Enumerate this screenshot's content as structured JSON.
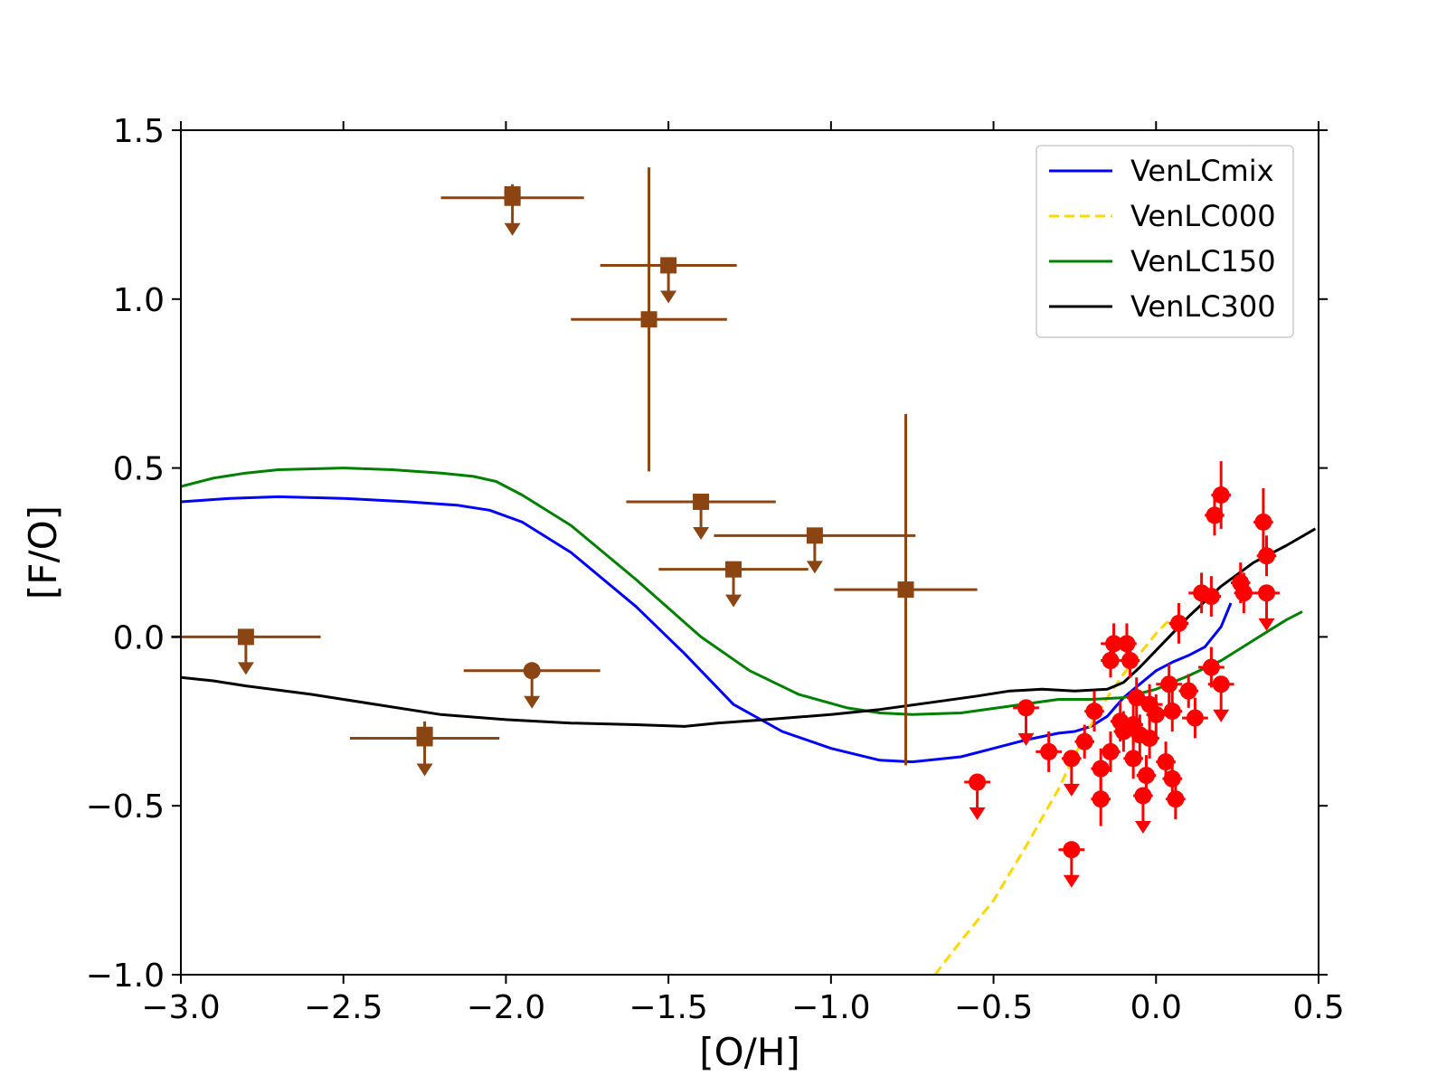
{
  "chart_data": {
    "type": "scatter",
    "xlabel": "[O/H]",
    "ylabel": "[F/O]",
    "xlim": [
      -3.0,
      0.5
    ],
    "ylim": [
      -1.0,
      1.5
    ],
    "xticks": [
      -3.0,
      -2.5,
      -2.0,
      -1.5,
      -1.0,
      -0.5,
      0.0,
      0.5
    ],
    "xtick_labels": [
      "−3.0",
      "−2.5",
      "−2.0",
      "−1.5",
      "−1.0",
      "−0.5",
      "0.0",
      "0.5"
    ],
    "yticks": [
      -1.0,
      -0.5,
      0.0,
      0.5,
      1.0,
      1.5
    ],
    "ytick_labels": [
      "−1.0",
      "−0.5",
      "0.0",
      "0.5",
      "1.0",
      "1.5"
    ],
    "legend_position": "top-right",
    "series": [
      {
        "name": "VenLCmix",
        "kind": "line",
        "color": "#0000ff",
        "dash": "solid",
        "x": [
          -3.0,
          -2.85,
          -2.7,
          -2.5,
          -2.3,
          -2.15,
          -2.05,
          -1.95,
          -1.8,
          -1.6,
          -1.45,
          -1.3,
          -1.15,
          -1.0,
          -0.85,
          -0.75,
          -0.6,
          -0.5,
          -0.4,
          -0.3,
          -0.25,
          -0.2,
          -0.15,
          -0.1,
          -0.05,
          0.0,
          0.05,
          0.1,
          0.15,
          0.2,
          0.23
        ],
        "y": [
          0.4,
          0.41,
          0.415,
          0.41,
          0.4,
          0.39,
          0.375,
          0.34,
          0.25,
          0.09,
          -0.05,
          -0.2,
          -0.28,
          -0.33,
          -0.365,
          -0.37,
          -0.355,
          -0.33,
          -0.305,
          -0.285,
          -0.28,
          -0.265,
          -0.235,
          -0.18,
          -0.14,
          -0.1,
          -0.075,
          -0.055,
          -0.03,
          0.03,
          0.1
        ]
      },
      {
        "name": "VenLC000",
        "kind": "line",
        "color": "#ffd700",
        "dash": "dashed",
        "x": [
          -0.68,
          -0.6,
          -0.5,
          -0.4,
          -0.3,
          -0.25,
          -0.2,
          -0.15,
          -0.1,
          -0.05,
          0.0,
          0.03,
          0.06
        ],
        "y": [
          -1.0,
          -0.9,
          -0.78,
          -0.62,
          -0.45,
          -0.35,
          -0.26,
          -0.18,
          -0.11,
          -0.05,
          0.01,
          0.04,
          0.06
        ]
      },
      {
        "name": "VenLC150",
        "kind": "line",
        "color": "#008000",
        "dash": "solid",
        "x": [
          -3.0,
          -2.9,
          -2.8,
          -2.7,
          -2.5,
          -2.35,
          -2.2,
          -2.1,
          -2.03,
          -1.95,
          -1.8,
          -1.6,
          -1.4,
          -1.25,
          -1.1,
          -0.95,
          -0.85,
          -0.75,
          -0.6,
          -0.45,
          -0.3,
          -0.2,
          -0.1,
          0.0,
          0.1,
          0.2,
          0.3,
          0.4,
          0.45
        ],
        "y": [
          0.445,
          0.47,
          0.485,
          0.495,
          0.5,
          0.495,
          0.485,
          0.475,
          0.46,
          0.42,
          0.33,
          0.17,
          0.0,
          -0.1,
          -0.17,
          -0.21,
          -0.225,
          -0.23,
          -0.225,
          -0.205,
          -0.185,
          -0.185,
          -0.18,
          -0.155,
          -0.115,
          -0.07,
          -0.01,
          0.05,
          0.075
        ]
      },
      {
        "name": "VenLC300",
        "kind": "line",
        "color": "#000000",
        "dash": "solid",
        "x": [
          -3.0,
          -2.9,
          -2.8,
          -2.6,
          -2.4,
          -2.2,
          -2.0,
          -1.8,
          -1.6,
          -1.45,
          -1.35,
          -1.2,
          -1.0,
          -0.85,
          -0.7,
          -0.55,
          -0.45,
          -0.35,
          -0.25,
          -0.15,
          -0.1,
          -0.05,
          0.0,
          0.05,
          0.1,
          0.2,
          0.3,
          0.4,
          0.49
        ],
        "y": [
          -0.12,
          -0.13,
          -0.145,
          -0.17,
          -0.2,
          -0.23,
          -0.245,
          -0.255,
          -0.26,
          -0.265,
          -0.255,
          -0.245,
          -0.23,
          -0.215,
          -0.195,
          -0.175,
          -0.16,
          -0.155,
          -0.16,
          -0.155,
          -0.135,
          -0.09,
          -0.04,
          0.01,
          0.06,
          0.15,
          0.22,
          0.27,
          0.32
        ]
      }
    ],
    "brown_points": {
      "color": "#8b4513",
      "points": [
        {
          "x": -1.98,
          "y": 1.3,
          "marker": "square",
          "xerr": 0.22,
          "yerr": 0,
          "upper_limit": true
        },
        {
          "x": -1.98,
          "y": 1.31,
          "marker": "square",
          "xerr": 0,
          "yerr": 0.03,
          "upper_limit": false
        },
        {
          "x": -1.5,
          "y": 1.1,
          "marker": "square",
          "xerr": 0.21,
          "yerr": 0,
          "upper_limit": true
        },
        {
          "x": -1.56,
          "y": 0.94,
          "marker": "square",
          "xerr": 0.24,
          "yerr": 0.45,
          "upper_limit": false
        },
        {
          "x": -1.4,
          "y": 0.4,
          "marker": "square",
          "xerr": 0.23,
          "yerr": 0,
          "upper_limit": true
        },
        {
          "x": -1.05,
          "y": 0.3,
          "marker": "square",
          "xerr": 0.31,
          "yerr": 0,
          "upper_limit": true
        },
        {
          "x": -1.3,
          "y": 0.2,
          "marker": "square",
          "xerr": 0.23,
          "yerr": 0,
          "upper_limit": true
        },
        {
          "x": -0.77,
          "y": 0.14,
          "marker": "square",
          "xerr": 0.22,
          "yerr": 0.52,
          "upper_limit": false
        },
        {
          "x": -2.8,
          "y": 0.0,
          "marker": "square",
          "xerr": 0.23,
          "yerr": 0,
          "upper_limit": true
        },
        {
          "x": -1.92,
          "y": -0.1,
          "marker": "circle",
          "xerr": 0.21,
          "yerr": 0,
          "upper_limit": true
        },
        {
          "x": -2.25,
          "y": -0.3,
          "marker": "square",
          "xerr": 0.23,
          "yerr": 0,
          "upper_limit": true
        },
        {
          "x": -2.25,
          "y": -0.29,
          "marker": "square",
          "xerr": 0,
          "yerr": 0.04,
          "upper_limit": false
        }
      ]
    },
    "red_points": {
      "color": "#ff0000",
      "points": [
        {
          "x": 0.2,
          "y": 0.42,
          "xerr": 0.03,
          "yerr": 0.1,
          "upper_limit": false
        },
        {
          "x": 0.18,
          "y": 0.36,
          "xerr": 0.03,
          "yerr": 0.06,
          "upper_limit": false
        },
        {
          "x": 0.33,
          "y": 0.34,
          "xerr": 0.03,
          "yerr": 0.1,
          "upper_limit": false
        },
        {
          "x": 0.34,
          "y": 0.24,
          "xerr": 0.03,
          "yerr": 0.06,
          "upper_limit": false
        },
        {
          "x": 0.26,
          "y": 0.16,
          "xerr": 0.03,
          "yerr": 0.06,
          "upper_limit": false
        },
        {
          "x": 0.27,
          "y": 0.13,
          "xerr": 0.03,
          "yerr": 0.06,
          "upper_limit": false
        },
        {
          "x": 0.34,
          "y": 0.13,
          "xerr": 0.04,
          "yerr": 0,
          "upper_limit": true
        },
        {
          "x": 0.14,
          "y": 0.13,
          "xerr": 0.04,
          "yerr": 0.06,
          "upper_limit": false
        },
        {
          "x": 0.17,
          "y": 0.12,
          "xerr": 0.03,
          "yerr": 0.06,
          "upper_limit": false
        },
        {
          "x": 0.07,
          "y": 0.04,
          "xerr": 0.03,
          "yerr": 0.06,
          "upper_limit": false
        },
        {
          "x": -0.13,
          "y": -0.02,
          "xerr": 0.04,
          "yerr": 0.06,
          "upper_limit": false
        },
        {
          "x": -0.09,
          "y": -0.02,
          "xerr": 0.03,
          "yerr": 0.06,
          "upper_limit": false
        },
        {
          "x": -0.08,
          "y": -0.07,
          "xerr": 0.03,
          "yerr": 0.05,
          "upper_limit": false
        },
        {
          "x": -0.14,
          "y": -0.07,
          "xerr": 0.03,
          "yerr": 0.05,
          "upper_limit": false
        },
        {
          "x": 0.17,
          "y": -0.09,
          "xerr": 0.04,
          "yerr": 0.06,
          "upper_limit": false
        },
        {
          "x": 0.2,
          "y": -0.14,
          "xerr": 0.04,
          "yerr": 0,
          "upper_limit": true
        },
        {
          "x": 0.1,
          "y": -0.16,
          "xerr": 0.03,
          "yerr": 0.05,
          "upper_limit": false
        },
        {
          "x": 0.04,
          "y": -0.14,
          "xerr": 0.04,
          "yerr": 0.06,
          "upper_limit": false
        },
        {
          "x": -0.06,
          "y": -0.18,
          "xerr": 0.03,
          "yerr": 0.06,
          "upper_limit": false
        },
        {
          "x": -0.02,
          "y": -0.2,
          "xerr": 0.04,
          "yerr": 0.06,
          "upper_limit": false
        },
        {
          "x": 0.0,
          "y": -0.23,
          "xerr": 0.03,
          "yerr": 0.06,
          "upper_limit": false
        },
        {
          "x": 0.05,
          "y": -0.22,
          "xerr": 0.03,
          "yerr": 0.06,
          "upper_limit": false
        },
        {
          "x": -0.4,
          "y": -0.21,
          "xerr": 0.04,
          "yerr": 0,
          "upper_limit": true
        },
        {
          "x": -0.19,
          "y": -0.22,
          "xerr": 0.03,
          "yerr": 0.06,
          "upper_limit": false
        },
        {
          "x": 0.12,
          "y": -0.24,
          "xerr": 0.04,
          "yerr": 0.06,
          "upper_limit": false
        },
        {
          "x": -0.11,
          "y": -0.25,
          "xerr": 0.03,
          "yerr": 0.06,
          "upper_limit": false
        },
        {
          "x": -0.07,
          "y": -0.26,
          "xerr": 0.03,
          "yerr": 0.06,
          "upper_limit": false
        },
        {
          "x": -0.1,
          "y": -0.28,
          "xerr": 0.03,
          "yerr": 0.06,
          "upper_limit": false
        },
        {
          "x": -0.05,
          "y": -0.29,
          "xerr": 0.03,
          "yerr": 0.06,
          "upper_limit": false
        },
        {
          "x": -0.02,
          "y": -0.3,
          "xerr": 0.03,
          "yerr": 0.06,
          "upper_limit": false
        },
        {
          "x": -0.22,
          "y": -0.31,
          "xerr": 0.03,
          "yerr": 0.05,
          "upper_limit": false
        },
        {
          "x": -0.33,
          "y": -0.34,
          "xerr": 0.04,
          "yerr": 0.06,
          "upper_limit": false
        },
        {
          "x": -0.14,
          "y": -0.34,
          "xerr": 0.03,
          "yerr": 0.06,
          "upper_limit": false
        },
        {
          "x": -0.26,
          "y": -0.36,
          "xerr": 0.03,
          "yerr": 0,
          "upper_limit": true
        },
        {
          "x": -0.07,
          "y": -0.36,
          "xerr": 0.03,
          "yerr": 0.06,
          "upper_limit": false
        },
        {
          "x": 0.03,
          "y": -0.37,
          "xerr": 0.03,
          "yerr": 0.06,
          "upper_limit": false
        },
        {
          "x": -0.17,
          "y": -0.39,
          "xerr": 0.03,
          "yerr": 0.06,
          "upper_limit": false
        },
        {
          "x": -0.03,
          "y": -0.41,
          "xerr": 0.03,
          "yerr": 0.06,
          "upper_limit": false
        },
        {
          "x": 0.05,
          "y": -0.42,
          "xerr": 0.03,
          "yerr": 0.06,
          "upper_limit": false
        },
        {
          "x": -0.55,
          "y": -0.43,
          "xerr": 0.04,
          "yerr": 0,
          "upper_limit": true
        },
        {
          "x": -0.04,
          "y": -0.47,
          "xerr": 0.03,
          "yerr": 0,
          "upper_limit": true
        },
        {
          "x": -0.17,
          "y": -0.48,
          "xerr": 0.03,
          "yerr": 0.08,
          "upper_limit": false
        },
        {
          "x": 0.06,
          "y": -0.48,
          "xerr": 0.03,
          "yerr": 0.06,
          "upper_limit": false
        },
        {
          "x": -0.26,
          "y": -0.63,
          "xerr": 0.04,
          "yerr": 0,
          "upper_limit": true
        }
      ]
    }
  }
}
